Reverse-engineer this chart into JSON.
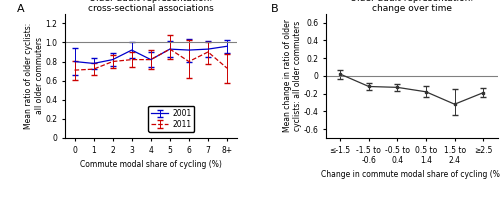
{
  "panel_a": {
    "title": "Older adult representation:\ncross-sectional associations",
    "xlabel": "Commute modal share of cycling (%)",
    "ylabel": "Mean ratio of older cyclists:\nall older commuters",
    "xlabels": [
      "0",
      "1",
      "2",
      "3",
      "4",
      "5",
      "6",
      "7",
      "8+"
    ],
    "ylim": [
      0,
      1.3
    ],
    "yticks": [
      0,
      0.2,
      0.4,
      0.6,
      0.8,
      1.0,
      1.2
    ],
    "ref_line": 1.0,
    "series_2001": {
      "y": [
        0.8,
        0.78,
        0.82,
        0.92,
        0.82,
        0.93,
        0.92,
        0.93,
        0.96
      ],
      "yerr_lo": [
        0.14,
        0.06,
        0.07,
        0.08,
        0.08,
        0.08,
        0.12,
        0.08,
        0.07
      ],
      "yerr_hi": [
        0.14,
        0.06,
        0.07,
        0.08,
        0.08,
        0.08,
        0.12,
        0.08,
        0.07
      ],
      "color": "#0000cc",
      "linestyle": "-",
      "label": "2001"
    },
    "series_2011": {
      "y": [
        0.71,
        0.72,
        0.8,
        0.82,
        0.82,
        0.93,
        0.8,
        0.9,
        0.73
      ],
      "yerr_lo": [
        0.1,
        0.06,
        0.07,
        0.08,
        0.1,
        0.1,
        0.17,
        0.13,
        0.15
      ],
      "yerr_hi": [
        0.1,
        0.06,
        0.07,
        0.08,
        0.1,
        0.15,
        0.23,
        0.1,
        0.15
      ],
      "color": "#cc0000",
      "linestyle": "--",
      "label": "2011"
    }
  },
  "panel_b": {
    "title": "Older adult representation:\nchange over time",
    "xlabel": "Change in commute modal share of cycling (%)",
    "ylabel": "Mean change in ratio of older\ncyclists: all older commuters",
    "xlabels": [
      "≤-1.5",
      "-1.5 to\n-0.6",
      "-0.5 to\n0.4",
      "0.5 to\n1.4",
      "1.5 to\n2.4",
      "≥2.5"
    ],
    "ylim": [
      -0.7,
      0.7
    ],
    "yticks": [
      -0.6,
      -0.4,
      -0.2,
      0,
      0.2,
      0.4,
      0.6
    ],
    "ref_line": 0.0,
    "series_main": {
      "y": [
        0.02,
        -0.12,
        -0.13,
        -0.18,
        -0.32,
        -0.19
      ],
      "yerr_lo": [
        0.05,
        0.04,
        0.04,
        0.06,
        0.12,
        0.05
      ],
      "yerr_hi": [
        0.05,
        0.04,
        0.04,
        0.06,
        0.17,
        0.05
      ],
      "color": "#333333",
      "linestyle": "-"
    }
  },
  "background_color": "#ffffff",
  "label_fontsize": 5.5,
  "title_fontsize": 6.5,
  "tick_fontsize": 5.5,
  "panel_label_fontsize": 8
}
